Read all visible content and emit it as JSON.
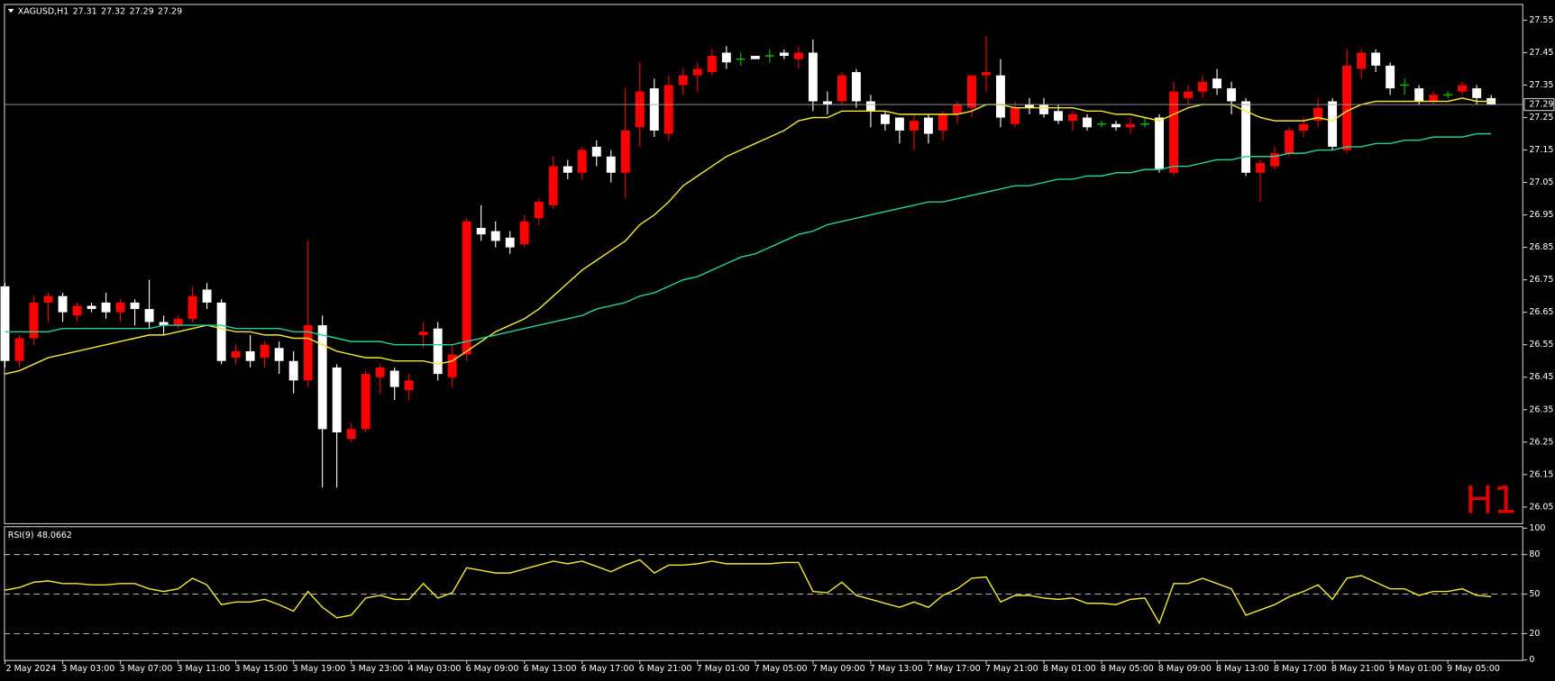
{
  "chart_data": {
    "type": "candlestick",
    "symbol": "XAGUSD,H1",
    "timeframe_label": "H1",
    "categories": [
      "2 May 2024",
      null,
      null,
      null,
      "3 May 03:00",
      null,
      null,
      null,
      "3 May 07:00",
      null,
      null,
      null,
      "3 May 11:00",
      null,
      null,
      null,
      "3 May 15:00",
      null,
      null,
      null,
      "3 May 19:00",
      null,
      null,
      null,
      "3 May 23:00",
      null,
      null,
      null,
      "4 May 03:00",
      null,
      null,
      null,
      "6 May 09:00",
      null,
      null,
      null,
      "6 May 13:00",
      null,
      null,
      null,
      "6 May 17:00",
      null,
      null,
      null,
      "6 May 21:00",
      null,
      null,
      null,
      "7 May 01:00",
      null,
      null,
      null,
      "7 May 05:00",
      null,
      null,
      null,
      "7 May 09:00",
      null,
      null,
      null,
      "7 May 13:00",
      null,
      null,
      null,
      "7 May 17:00",
      null,
      null,
      null,
      "7 May 21:00",
      null,
      null,
      null,
      "8 May 01:00",
      null,
      null,
      null,
      "8 May 05:00",
      null,
      null,
      null,
      "8 May 09:00",
      null,
      null,
      null,
      "8 May 13:00",
      null,
      null,
      null,
      "8 May 17:00",
      null,
      null,
      null,
      "8 May 21:00",
      null,
      null,
      null,
      "9 May 01:00",
      null,
      null,
      null,
      "9 May 05:00",
      null,
      null,
      null
    ],
    "open": [
      26.73,
      26.5,
      26.57,
      26.68,
      26.7,
      26.64,
      26.67,
      26.68,
      26.65,
      26.68,
      26.66,
      26.62,
      26.61,
      26.63,
      26.72,
      26.68,
      26.51,
      26.53,
      26.51,
      26.54,
      26.5,
      26.44,
      26.61,
      26.48,
      26.26,
      26.29,
      26.45,
      26.47,
      26.41,
      26.58,
      26.6,
      26.45,
      26.52,
      26.91,
      26.9,
      26.88,
      26.86,
      26.94,
      26.98,
      27.1,
      27.08,
      27.16,
      27.13,
      27.08,
      27.22,
      27.34,
      27.2,
      27.35,
      27.38,
      27.39,
      27.45,
      27.43,
      27.44,
      27.44,
      27.45,
      27.43,
      27.45,
      27.3,
      27.3,
      27.39,
      27.3,
      27.26,
      27.25,
      27.21,
      27.25,
      27.21,
      27.26,
      27.28,
      27.38,
      27.38,
      27.23,
      27.29,
      27.29,
      27.27,
      27.24,
      27.25,
      27.23,
      27.23,
      27.22,
      27.23,
      27.25,
      27.08,
      27.31,
      27.33,
      27.37,
      27.34,
      27.3,
      27.08,
      27.1,
      27.14,
      27.21,
      27.24,
      27.3,
      27.15,
      27.4,
      27.45,
      27.41,
      27.35,
      27.34,
      27.3,
      27.32,
      27.33,
      27.34,
      27.31
    ],
    "high": [
      26.74,
      26.58,
      26.7,
      26.71,
      26.71,
      26.68,
      26.68,
      26.71,
      26.69,
      26.69,
      26.75,
      26.64,
      26.64,
      26.73,
      26.74,
      26.69,
      26.55,
      26.58,
      26.56,
      26.56,
      26.53,
      26.87,
      26.64,
      26.49,
      26.31,
      26.47,
      26.49,
      26.48,
      26.46,
      26.62,
      26.62,
      26.55,
      26.94,
      26.98,
      26.93,
      26.9,
      26.95,
      27.0,
      27.13,
      27.12,
      27.16,
      27.18,
      27.15,
      27.34,
      27.42,
      27.37,
      27.38,
      27.4,
      27.42,
      27.46,
      27.47,
      27.45,
      27.44,
      27.46,
      27.46,
      27.47,
      27.49,
      27.33,
      27.39,
      27.4,
      27.32,
      27.27,
      27.25,
      27.26,
      27.26,
      27.27,
      27.3,
      27.38,
      27.5,
      27.43,
      27.3,
      27.31,
      27.31,
      27.29,
      27.27,
      27.26,
      27.24,
      27.24,
      27.25,
      27.25,
      27.26,
      27.36,
      27.35,
      27.38,
      27.4,
      27.36,
      27.31,
      27.12,
      27.16,
      27.22,
      27.25,
      27.31,
      27.31,
      27.46,
      27.46,
      27.46,
      27.42,
      27.37,
      27.35,
      27.33,
      27.33,
      27.36,
      27.35,
      27.32
    ],
    "low": [
      26.48,
      26.48,
      26.55,
      26.62,
      26.62,
      26.62,
      26.65,
      26.63,
      26.62,
      26.61,
      26.6,
      26.58,
      26.6,
      26.62,
      26.66,
      26.49,
      26.49,
      26.48,
      26.48,
      26.46,
      26.4,
      26.42,
      26.11,
      26.11,
      26.25,
      26.28,
      26.4,
      26.38,
      26.38,
      26.54,
      26.44,
      26.42,
      26.5,
      26.87,
      26.85,
      26.83,
      26.85,
      26.92,
      26.97,
      27.06,
      27.06,
      27.1,
      27.05,
      27.0,
      27.16,
      27.19,
      27.18,
      27.32,
      27.33,
      27.38,
      27.4,
      27.41,
      27.43,
      27.42,
      27.43,
      27.4,
      27.27,
      27.26,
      27.29,
      27.28,
      27.22,
      27.21,
      27.17,
      27.15,
      27.17,
      27.18,
      27.23,
      27.25,
      27.33,
      27.22,
      27.22,
      27.26,
      27.25,
      27.23,
      27.21,
      27.21,
      27.22,
      27.21,
      27.2,
      27.22,
      27.08,
      27.07,
      27.29,
      27.31,
      27.32,
      27.26,
      27.07,
      26.99,
      27.09,
      27.13,
      27.19,
      27.22,
      27.15,
      27.14,
      27.37,
      27.39,
      27.32,
      27.32,
      27.29,
      27.29,
      27.31,
      27.32,
      27.29,
      27.29
    ],
    "close": [
      26.5,
      26.57,
      26.68,
      26.7,
      26.65,
      26.67,
      26.66,
      26.65,
      26.68,
      26.66,
      26.62,
      26.61,
      26.63,
      26.7,
      26.68,
      26.5,
      26.53,
      26.5,
      26.55,
      26.5,
      26.44,
      26.61,
      26.29,
      26.28,
      26.29,
      26.46,
      26.48,
      26.42,
      26.44,
      26.59,
      26.46,
      26.52,
      26.93,
      26.89,
      26.87,
      26.85,
      26.93,
      26.99,
      27.1,
      27.08,
      27.15,
      27.13,
      27.08,
      27.21,
      27.33,
      27.21,
      27.35,
      27.38,
      27.4,
      27.44,
      27.42,
      27.43,
      27.43,
      27.44,
      27.44,
      27.45,
      27.3,
      27.29,
      27.38,
      27.3,
      27.27,
      27.23,
      27.21,
      27.24,
      27.2,
      27.26,
      27.29,
      27.38,
      27.39,
      27.25,
      27.28,
      27.28,
      27.26,
      27.24,
      27.26,
      27.22,
      27.23,
      27.22,
      27.23,
      27.23,
      27.09,
      27.33,
      27.33,
      27.36,
      27.34,
      27.3,
      27.08,
      27.11,
      27.14,
      27.21,
      27.23,
      27.28,
      27.16,
      27.41,
      27.45,
      27.41,
      27.34,
      27.35,
      27.3,
      27.32,
      27.32,
      27.35,
      27.31,
      27.29
    ],
    "up_color": "#ff0000",
    "down_color": "#ffffff",
    "doji_color": "#00c800",
    "lines": [
      {
        "color": "#f0e830",
        "values": [
          26.46,
          26.47,
          26.49,
          26.51,
          26.52,
          26.53,
          26.54,
          26.55,
          26.56,
          26.57,
          26.58,
          26.58,
          26.59,
          26.6,
          26.61,
          26.6,
          26.59,
          26.59,
          26.58,
          26.58,
          26.57,
          26.57,
          26.55,
          26.53,
          26.52,
          26.51,
          26.51,
          26.5,
          26.5,
          26.5,
          26.49,
          26.5,
          26.53,
          26.56,
          26.59,
          26.61,
          26.63,
          26.66,
          26.7,
          26.74,
          26.78,
          26.81,
          26.84,
          26.87,
          26.92,
          26.95,
          26.99,
          27.04,
          27.07,
          27.1,
          27.13,
          27.15,
          27.17,
          27.19,
          27.21,
          27.24,
          27.25,
          27.25,
          27.27,
          27.27,
          27.27,
          27.27,
          27.26,
          27.26,
          27.26,
          27.26,
          27.26,
          27.27,
          27.29,
          27.29,
          27.28,
          27.28,
          27.28,
          27.28,
          27.28,
          27.27,
          27.27,
          27.26,
          27.26,
          27.25,
          27.24,
          27.26,
          27.28,
          27.29,
          27.29,
          27.29,
          27.27,
          27.25,
          27.24,
          27.24,
          27.24,
          27.25,
          27.24,
          27.27,
          27.29,
          27.3,
          27.3,
          27.3,
          27.3,
          27.3,
          27.3,
          27.31,
          27.3,
          27.3
        ]
      },
      {
        "color": "#20d0a0",
        "values": [
          26.59,
          26.59,
          26.59,
          26.59,
          26.6,
          26.6,
          26.6,
          26.6,
          26.6,
          26.6,
          26.6,
          26.61,
          26.61,
          26.61,
          26.61,
          26.61,
          26.6,
          26.6,
          26.6,
          26.6,
          26.59,
          26.59,
          26.58,
          26.57,
          26.56,
          26.56,
          26.56,
          26.55,
          26.55,
          26.55,
          26.55,
          26.55,
          26.56,
          26.57,
          26.58,
          26.59,
          26.6,
          26.61,
          26.62,
          26.63,
          26.64,
          26.66,
          26.67,
          26.68,
          26.7,
          26.71,
          26.73,
          26.75,
          26.76,
          26.78,
          26.8,
          26.82,
          26.83,
          26.85,
          26.87,
          26.89,
          26.9,
          26.92,
          26.93,
          26.94,
          26.95,
          26.96,
          26.97,
          26.98,
          26.99,
          26.99,
          27.0,
          27.01,
          27.02,
          27.03,
          27.04,
          27.04,
          27.05,
          27.06,
          27.06,
          27.07,
          27.07,
          27.08,
          27.08,
          27.09,
          27.09,
          27.1,
          27.1,
          27.11,
          27.12,
          27.12,
          27.13,
          27.13,
          27.13,
          27.14,
          27.14,
          27.15,
          27.15,
          27.16,
          27.16,
          27.17,
          27.17,
          27.18,
          27.18,
          27.19,
          27.19,
          27.19,
          27.2,
          27.2
        ]
      }
    ],
    "ylim": [
      26.0,
      27.6
    ],
    "yticks": [
      27.55,
      27.45,
      27.35,
      27.25,
      27.15,
      27.05,
      26.95,
      26.85,
      26.75,
      26.65,
      26.55,
      26.45,
      26.35,
      26.25,
      26.15,
      26.05
    ],
    "rsi": {
      "name": "RSI(9)",
      "color": "#f0e830",
      "values": [
        53,
        55,
        59,
        60,
        58,
        58,
        57,
        57,
        58,
        58,
        54,
        52,
        54,
        62,
        57,
        42,
        44,
        44,
        46,
        42,
        37,
        52,
        40,
        32,
        34,
        47,
        49,
        46,
        46,
        58,
        47,
        51,
        70,
        68,
        66,
        66,
        69,
        72,
        75,
        73,
        75,
        71,
        67,
        72,
        76,
        66,
        72,
        72,
        73,
        75,
        73,
        73,
        73,
        73,
        74,
        74,
        52,
        51,
        59,
        49,
        46,
        43,
        40,
        44,
        40,
        49,
        54,
        62,
        63,
        44,
        49,
        49,
        47,
        46,
        47,
        43,
        43,
        42,
        46,
        47,
        28,
        58,
        58,
        62,
        58,
        54,
        34,
        38,
        42,
        48,
        52,
        57,
        46,
        62,
        64,
        59,
        54,
        54,
        49,
        52,
        52,
        54,
        49,
        48.0662
      ],
      "ylim": [
        0,
        100
      ],
      "yticks": [
        100,
        80,
        50,
        20,
        0
      ],
      "levels": [
        80,
        50,
        20
      ]
    }
  }
}
